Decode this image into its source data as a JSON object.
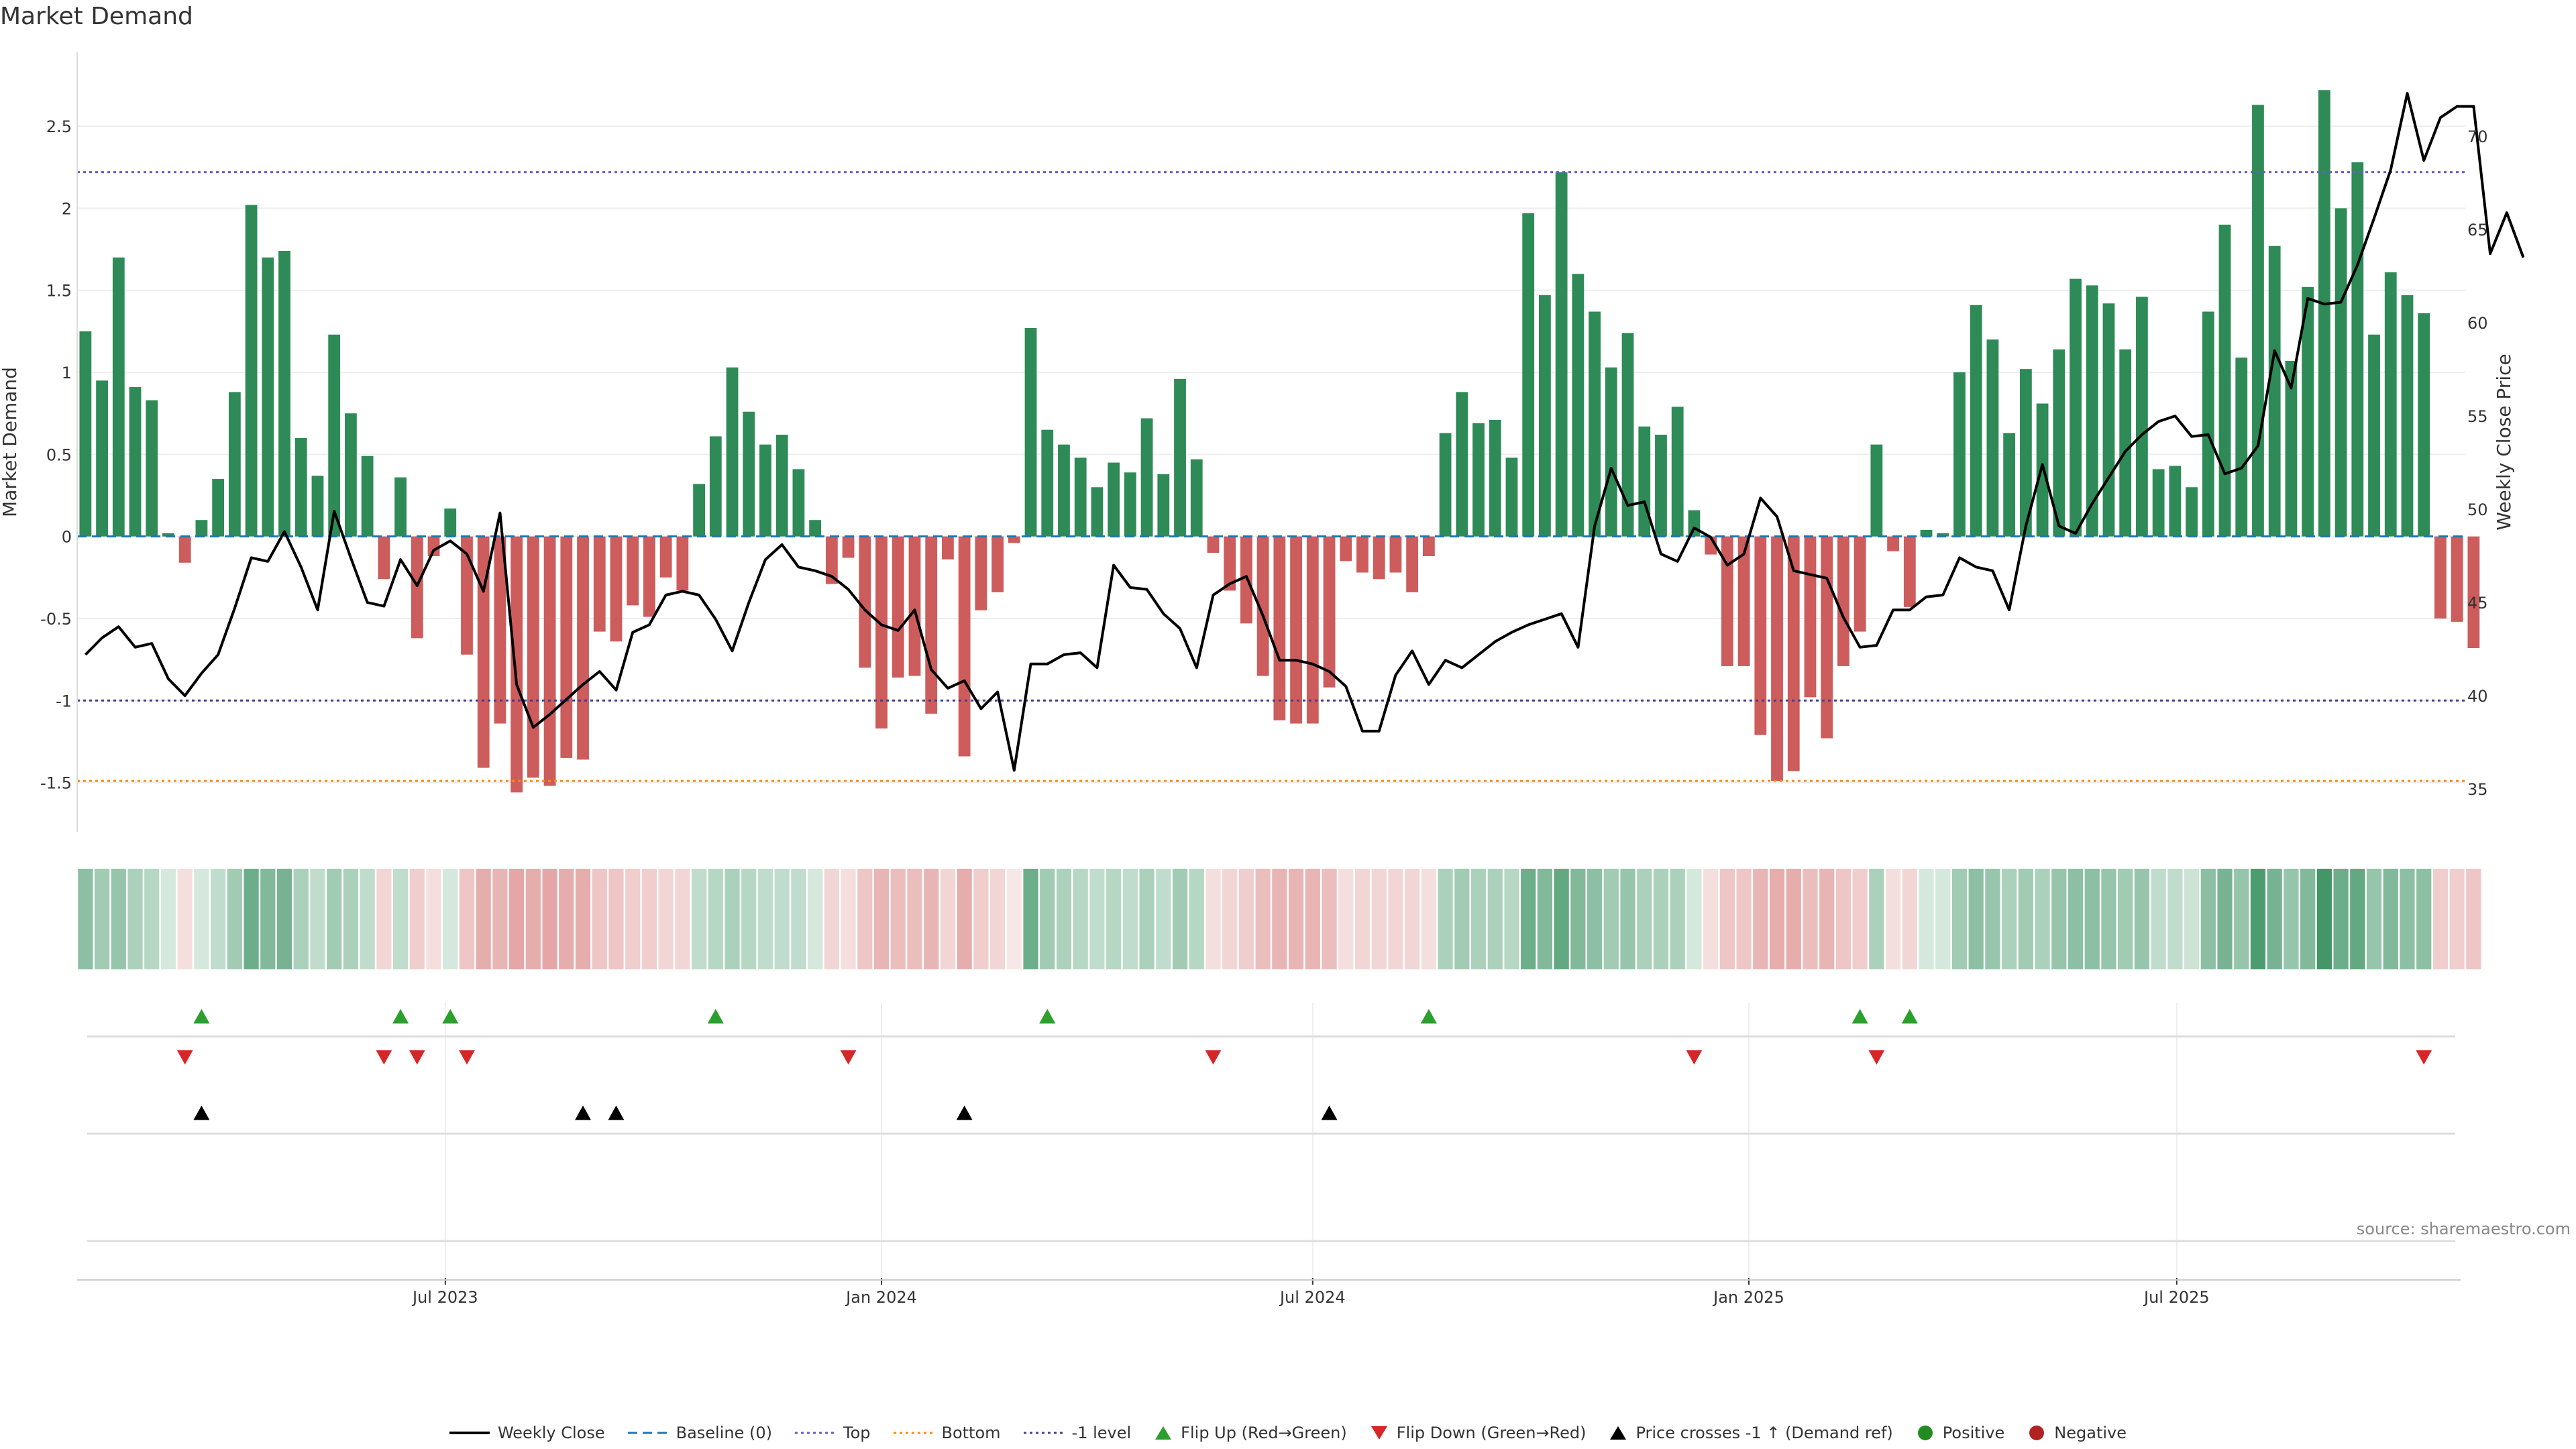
{
  "title": "Market Demand",
  "source": "source: sharemaestro.com",
  "colors": {
    "positive": "#2e8b57",
    "negative": "#cd5c5c",
    "price": "#000000",
    "top": "#6a5acd",
    "bottom": "#ff8c00",
    "minus_one": "#483d8b",
    "baseline": "#1f77b4",
    "flip_up": "#2ca02c",
    "flip_down": "#d62728"
  },
  "legend": [
    {
      "key": "weekly_close",
      "label": "Weekly Close",
      "symbol": "line-solid"
    },
    {
      "key": "baseline",
      "label": "Baseline (0)",
      "symbol": "line-dashed"
    },
    {
      "key": "top",
      "label": "Top",
      "symbol": "line-dotted"
    },
    {
      "key": "bottom",
      "label": "Bottom",
      "symbol": "line-dotted"
    },
    {
      "key": "minus_one",
      "label": "-1 level",
      "symbol": "line-dotted"
    },
    {
      "key": "flip_up",
      "label": "Flip Up (Red→Green)",
      "symbol": "triangle-up"
    },
    {
      "key": "flip_down",
      "label": "Flip Down (Green→Red)",
      "symbol": "triangle-down"
    },
    {
      "key": "price_cross",
      "label": "Price crosses -1 ↑ (Demand ref)",
      "symbol": "triangle-up"
    },
    {
      "key": "positive",
      "label": "Positive",
      "symbol": "dot"
    },
    {
      "key": "negative",
      "label": "Negative",
      "symbol": "dot"
    }
  ],
  "chart_data": {
    "type": "bar",
    "title": "Market Demand",
    "xlabel": "",
    "ylabel": "Market Demand",
    "y2label": "Weekly Close Price",
    "ylim": [
      -1.8,
      2.95
    ],
    "y2lim": [
      32.7,
      74.5
    ],
    "yticks": [
      "-1.5",
      "-1",
      "-0.5",
      "0",
      "0.5",
      "1",
      "1.5",
      "2",
      "2.5"
    ],
    "y2ticks": [
      "35",
      "40",
      "45",
      "50",
      "55",
      "60",
      "65",
      "70"
    ],
    "xlim": [
      -0.5,
      143.5
    ],
    "xticks": [
      {
        "label": "Jul 2023",
        "index": 21.7
      },
      {
        "label": "Jan 2024",
        "index": 48.0
      },
      {
        "label": "Jul 2024",
        "index": 74.0
      },
      {
        "label": "Jan 2025",
        "index": 100.3
      },
      {
        "label": "Jul 2025",
        "index": 126.1
      }
    ],
    "reference_lines": {
      "baseline": 0,
      "top": 2.22,
      "bottom": -1.49,
      "minus_one": -1.0
    },
    "series": [
      {
        "name": "Market Demand",
        "kind": "bar",
        "values": [
          1.25,
          0.95,
          1.7,
          0.91,
          0.83,
          0.02,
          -0.16,
          0.1,
          0.35,
          0.88,
          2.02,
          1.7,
          1.74,
          0.6,
          0.37,
          1.23,
          0.75,
          0.49,
          -0.26,
          0.36,
          -0.62,
          -0.12,
          0.17,
          -0.72,
          -1.41,
          -1.14,
          -1.56,
          -1.47,
          -1.52,
          -1.35,
          -1.36,
          -0.58,
          -0.64,
          -0.42,
          -0.49,
          -0.25,
          -0.33,
          0.32,
          0.61,
          1.03,
          0.76,
          0.56,
          0.62,
          0.41,
          0.1,
          -0.29,
          -0.13,
          -0.8,
          -1.17,
          -0.86,
          -0.85,
          -1.08,
          -0.14,
          -1.34,
          -0.45,
          -0.34,
          -0.04,
          1.27,
          0.65,
          0.56,
          0.48,
          0.3,
          0.45,
          0.39,
          0.72,
          0.38,
          0.96,
          0.47,
          -0.1,
          -0.33,
          -0.53,
          -0.85,
          -1.12,
          -1.14,
          -1.14,
          -0.92,
          -0.15,
          -0.22,
          -0.26,
          -0.22,
          -0.34,
          -0.12,
          0.63,
          0.88,
          0.69,
          0.71,
          0.48,
          1.97,
          1.47,
          2.22,
          1.6,
          1.37,
          1.03,
          1.24,
          0.67,
          0.62,
          0.79,
          0.16,
          -0.11,
          -0.79,
          -0.79,
          -1.21,
          -1.49,
          -1.43,
          -0.98,
          -1.23,
          -0.79,
          -0.58,
          0.56,
          -0.09,
          -0.43,
          0.04,
          0.02,
          1.0,
          1.41,
          1.2,
          0.63,
          1.02,
          0.81,
          1.14,
          1.57,
          1.53,
          1.42,
          1.14,
          1.46,
          0.41,
          0.43,
          0.3,
          1.37,
          1.9,
          1.09,
          2.63,
          1.77,
          1.07,
          1.52,
          2.72,
          2.0,
          2.28,
          1.23,
          1.61,
          1.47,
          1.36,
          -0.5,
          -0.52,
          -0.68
        ]
      },
      {
        "name": "Weekly Close",
        "kind": "line",
        "axis": "y2",
        "values": [
          42.2,
          43.1,
          43.7,
          42.6,
          42.8,
          40.9,
          40.0,
          41.2,
          42.2,
          44.7,
          47.4,
          47.2,
          48.8,
          46.9,
          44.6,
          49.9,
          47.4,
          45.0,
          44.8,
          47.3,
          45.9,
          47.8,
          48.3,
          47.6,
          45.6,
          49.8,
          40.6,
          38.3,
          39.0,
          39.8,
          40.6,
          41.3,
          40.3,
          43.4,
          43.8,
          45.4,
          45.6,
          45.4,
          44.1,
          42.4,
          45.0,
          47.3,
          48.1,
          46.9,
          46.7,
          46.4,
          45.7,
          44.6,
          43.8,
          43.5,
          44.6,
          41.4,
          40.4,
          40.8,
          39.3,
          40.2,
          36.0,
          41.7,
          41.7,
          42.2,
          42.3,
          41.5,
          47.0,
          45.8,
          45.7,
          44.4,
          43.6,
          41.5,
          45.4,
          46.0,
          46.4,
          44.3,
          41.9,
          41.9,
          41.7,
          41.3,
          40.5,
          38.1,
          38.1,
          41.1,
          42.4,
          40.6,
          41.9,
          41.5,
          42.2,
          42.9,
          43.4,
          43.8,
          44.1,
          44.4,
          42.6,
          49.1,
          52.2,
          50.2,
          50.4,
          47.6,
          47.2,
          49.0,
          48.5,
          47.0,
          47.6,
          50.6,
          49.6,
          46.7,
          46.5,
          46.3,
          44.2,
          42.6,
          42.7,
          44.6,
          44.6,
          45.3,
          45.4,
          47.4,
          46.9,
          46.7,
          44.6,
          49.1,
          52.4,
          49.1,
          48.7,
          50.3,
          51.7,
          53.1,
          54.0,
          54.7,
          55.0,
          53.9,
          54.0,
          51.9,
          52.2,
          53.4,
          58.5,
          56.5,
          61.3,
          61.0,
          61.1,
          63.1,
          65.6,
          68.2,
          72.3,
          68.7,
          71.0,
          71.6,
          71.6,
          63.7,
          65.9,
          63.5
        ]
      }
    ],
    "flip_up_indices": [
      7,
      19,
      22,
      38,
      58,
      81,
      107,
      110
    ],
    "flip_down_indices": [
      6,
      18,
      20,
      23,
      46,
      68,
      97,
      108,
      141
    ],
    "price_cross_indices": [
      7,
      30,
      32,
      53,
      75
    ],
    "strip_alphas": [
      0.55,
      0.45,
      0.5,
      0.4,
      0.35,
      0.2,
      0.2,
      0.2,
      0.3,
      0.45,
      0.7,
      0.6,
      0.65,
      0.4,
      0.3,
      0.45,
      0.4,
      0.3,
      0.25,
      0.3,
      0.3,
      0.2,
      0.2,
      0.35,
      0.5,
      0.45,
      0.55,
      0.5,
      0.55,
      0.5,
      0.5,
      0.35,
      0.35,
      0.3,
      0.3,
      0.25,
      0.25,
      0.3,
      0.35,
      0.4,
      0.35,
      0.3,
      0.3,
      0.3,
      0.2,
      0.25,
      0.2,
      0.35,
      0.45,
      0.4,
      0.4,
      0.45,
      0.25,
      0.5,
      0.3,
      0.25,
      0.15,
      0.7,
      0.45,
      0.4,
      0.35,
      0.3,
      0.35,
      0.3,
      0.4,
      0.3,
      0.45,
      0.35,
      0.2,
      0.25,
      0.3,
      0.4,
      0.45,
      0.45,
      0.45,
      0.4,
      0.2,
      0.25,
      0.25,
      0.25,
      0.25,
      0.2,
      0.4,
      0.45,
      0.4,
      0.4,
      0.35,
      0.7,
      0.6,
      0.75,
      0.6,
      0.55,
      0.45,
      0.5,
      0.4,
      0.4,
      0.4,
      0.2,
      0.2,
      0.35,
      0.35,
      0.45,
      0.5,
      0.5,
      0.4,
      0.45,
      0.35,
      0.3,
      0.4,
      0.2,
      0.25,
      0.2,
      0.2,
      0.45,
      0.55,
      0.5,
      0.4,
      0.45,
      0.4,
      0.5,
      0.55,
      0.55,
      0.5,
      0.45,
      0.5,
      0.3,
      0.3,
      0.25,
      0.55,
      0.65,
      0.5,
      0.85,
      0.65,
      0.5,
      0.6,
      0.9,
      0.7,
      0.75,
      0.5,
      0.6,
      0.55,
      0.55,
      0.3,
      0.3,
      0.35
    ]
  }
}
